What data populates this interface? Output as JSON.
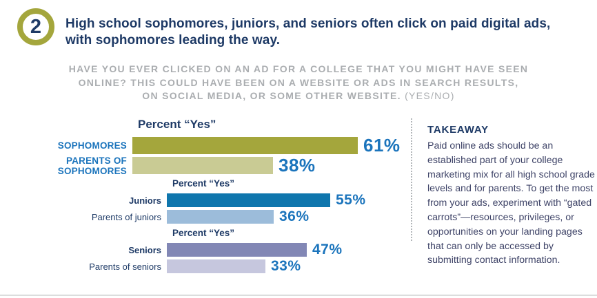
{
  "badge": {
    "number": "2"
  },
  "headline": {
    "line1": "High school sophomores, juniors, and seniors often click on paid digital ads,",
    "line2": "with sophomores leading the way."
  },
  "question": {
    "line1": "HAVE YOU EVER CLICKED ON AN AD FOR A COLLEGE THAT YOU MIGHT HAVE SEEN",
    "line2": "ONLINE? THIS COULD HAVE BEEN ON A WEBSITE OR ADS IN SEARCH RESULTS,",
    "line3_bold": "ON SOCIAL MEDIA, OR SOME OTHER WEBSITE.",
    "line3_light": "(YES/NO)"
  },
  "chart_data": [
    {
      "type": "bar",
      "orientation": "horizontal",
      "title": "Percent “Yes”",
      "categories": [
        "SOPHOMORES",
        "PARENTS OF SOPHOMORES"
      ],
      "values": [
        61,
        38
      ],
      "value_labels": [
        "61%",
        "38%"
      ],
      "bar_colors": [
        "#a4a63c",
        "#c9cb94"
      ],
      "xlim": [
        0,
        100
      ],
      "legend": "none",
      "grid": false
    },
    {
      "type": "bar",
      "orientation": "horizontal",
      "title": "Percent “Yes”",
      "categories": [
        "Juniors",
        "Parents of juniors"
      ],
      "values": [
        55,
        36
      ],
      "value_labels": [
        "55%",
        "36%"
      ],
      "bar_colors": [
        "#0f76ad",
        "#9cbcda"
      ],
      "xlim": [
        0,
        100
      ],
      "legend": "none",
      "grid": false
    },
    {
      "type": "bar",
      "orientation": "horizontal",
      "title": "Percent “Yes”",
      "categories": [
        "Seniors",
        "Parents of seniors"
      ],
      "values": [
        47,
        33
      ],
      "value_labels": [
        "47%",
        "33%"
      ],
      "bar_colors": [
        "#8287b5",
        "#c6c7de"
      ],
      "xlim": [
        0,
        100
      ],
      "legend": "none",
      "grid": false
    }
  ],
  "takeaway": {
    "title": "TAKEAWAY",
    "body": "Paid online ads should be an established part of your college marketing mix for all high school grade levels and for parents. To get the most from your ads, experiment with “gated carrots”—resources, privileges, or opportunities on your landing pages that can only be accessed by submitting contact information."
  },
  "colors": {
    "navy": "#1e3a66",
    "value_blue": "#1b74bc",
    "olive": "#a4a63c",
    "olive_light": "#c9cb94",
    "teal_blue": "#0f76ad",
    "light_blue": "#9cbcda",
    "purple": "#8287b5",
    "purple_light": "#c6c7de",
    "question_gray": "#aaadb0",
    "takeaway_text": "#3e4367",
    "rule_gray": "#dcdddd"
  }
}
